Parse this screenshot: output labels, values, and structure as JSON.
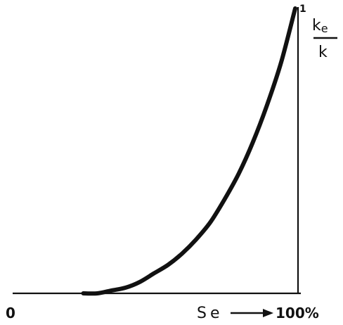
{
  "chart_data": {
    "type": "line",
    "title": "",
    "xlabel": "Se",
    "ylabel": "",
    "xlim": [
      0,
      100
    ],
    "ylim": [
      0,
      1
    ],
    "tick_labels": {
      "x_start": "0",
      "x_end": "100%",
      "y_top": "1"
    },
    "y_ratio": {
      "numerator": "ke",
      "numerator_main": "k",
      "numerator_sub": "e",
      "denominator": "k"
    },
    "grid": false,
    "series": [
      {
        "x": [
          25,
          30,
          35,
          40,
          45,
          50,
          55,
          60,
          65,
          70,
          75,
          80,
          85,
          90,
          95,
          100
        ],
        "y": [
          0.0,
          0.0,
          0.01,
          0.02,
          0.04,
          0.07,
          0.1,
          0.14,
          0.19,
          0.25,
          0.33,
          0.42,
          0.53,
          0.66,
          0.81,
          1.0
        ]
      }
    ]
  }
}
